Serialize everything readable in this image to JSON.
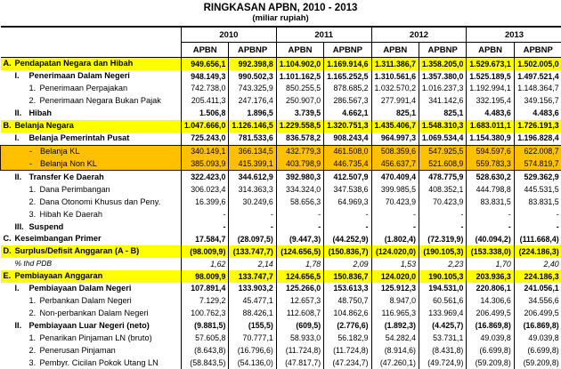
{
  "title": "RINGKASAN APBN, 2010 - 2013",
  "subtitle": "(miliar rupiah)",
  "columns": {
    "years": [
      "2010",
      "2011",
      "2012",
      "2013"
    ],
    "sub": [
      "APBN",
      "APBNP"
    ]
  },
  "colors": {
    "highlight_yellow": "#FFFF00",
    "highlight_orange": "#FFC000",
    "border": "#000000"
  },
  "rows": [
    {
      "prefix": "A.",
      "label": "Pendapatan Negara dan Hibah",
      "level": 0,
      "style": "yellow",
      "bold": true,
      "values": [
        "949.656,1",
        "992.398,8",
        "1.104.902,0",
        "1.169.914,6",
        "1.311.386,7",
        "1.358.205,0",
        "1.529.673,1",
        "1.502.005,0"
      ]
    },
    {
      "prefix": "I.",
      "label": "Penerimaan Dalam Negeri",
      "level": 1,
      "style": "",
      "bold": true,
      "values": [
        "948.149,3",
        "990.502,3",
        "1.101.162,5",
        "1.165.252,5",
        "1.310.561,6",
        "1.357.380,0",
        "1.525.189,5",
        "1.497.521,4"
      ]
    },
    {
      "prefix": "1.",
      "label": "Penerimaan Perpajakan",
      "level": 2,
      "style": "",
      "bold": false,
      "values": [
        "742.738,0",
        "743.325,9",
        "850.255,5",
        "878.685,2",
        "1.032.570,2",
        "1.016.237,3",
        "1.192.994,1",
        "1.148.364,7"
      ]
    },
    {
      "prefix": "2.",
      "label": "Penerimaan Negara Bukan Pajak",
      "level": 2,
      "style": "",
      "bold": false,
      "values": [
        "205.411,3",
        "247.176,4",
        "250.907,0",
        "286.567,3",
        "277.991,4",
        "341.142,6",
        "332.195,4",
        "349.156,7"
      ]
    },
    {
      "prefix": "II.",
      "label": "Hibah",
      "level": 1,
      "style": "",
      "bold": true,
      "values": [
        "1.506,8",
        "1.896,5",
        "3.739,5",
        "4.662,1",
        "825,1",
        "825,1",
        "4.483,6",
        "4.483,6"
      ]
    },
    {
      "prefix": "B.",
      "label": "Belanja Negara",
      "level": 0,
      "style": "yellow",
      "bold": true,
      "values": [
        "1.047.666,0",
        "1.126.146,5",
        "1.229.558,5",
        "1.320.751,3",
        "1.435.406,7",
        "1.548.310,3",
        "1.683.011,1",
        "1.726.191,3"
      ]
    },
    {
      "prefix": "I.",
      "label": "Belanja Pemerintah Pusat",
      "level": 1,
      "style": "",
      "bold": true,
      "values": [
        "725.243,0",
        "781.533,6",
        "836.578,2",
        "908.243,4",
        "964.997,3",
        "1.069.534,4",
        "1.154.380,9",
        "1.196.828,4"
      ]
    },
    {
      "prefix": "-",
      "label": "Belanja KL",
      "level": 2,
      "style": "orange",
      "bold": false,
      "box": "top",
      "values": [
        "340.149,1",
        "366.134,5",
        "432.779,3",
        "461.508,0",
        "508.359,6",
        "547.925,5",
        "594.597,6",
        "622.008,7"
      ]
    },
    {
      "prefix": "-",
      "label": "Belanja Non KL",
      "level": 2,
      "style": "orange",
      "bold": false,
      "box": "bottom",
      "values": [
        "385.093,9",
        "415.399,1",
        "403.798,9",
        "446.735,4",
        "456.637,7",
        "521.608,9",
        "559.783,3",
        "574.819,7"
      ]
    },
    {
      "prefix": "II.",
      "label": "Transfer Ke Daerah",
      "level": 1,
      "style": "",
      "bold": true,
      "values": [
        "322.423,0",
        "344.612,9",
        "392.980,3",
        "412.507,9",
        "470.409,4",
        "478.775,9",
        "528.630,2",
        "529.362,9"
      ]
    },
    {
      "prefix": "1.",
      "label": "Dana Perimbangan",
      "level": 2,
      "style": "",
      "bold": false,
      "values": [
        "306.023,4",
        "314.363,3",
        "334.324,0",
        "347.538,6",
        "399.985,5",
        "408.352,1",
        "444.798,8",
        "445.531,5"
      ]
    },
    {
      "prefix": "2.",
      "label": "Dana Otonomi Khusus dan Peny.",
      "level": 2,
      "style": "",
      "bold": false,
      "values": [
        "16.399,6",
        "30.249,6",
        "58.656,3",
        "64.969,3",
        "70.423,9",
        "70.423,9",
        "83.831,5",
        "83.831,5"
      ]
    },
    {
      "prefix": "3.",
      "label": "Hibah Ke Daerah",
      "level": 2,
      "style": "",
      "bold": false,
      "values": [
        "-",
        "-",
        "-",
        "-",
        "-",
        "-",
        "-",
        "-"
      ]
    },
    {
      "prefix": "III.",
      "label": "Suspend",
      "level": 1,
      "style": "",
      "bold": true,
      "values": [
        "-",
        "-",
        "-",
        "-",
        "-",
        "-",
        "-",
        "-"
      ]
    },
    {
      "prefix": "C.",
      "label": "Keseimbangan Primer",
      "level": 0,
      "style": "",
      "bold": true,
      "values": [
        "17.584,7",
        "(28.097,5)",
        "(9.447,3)",
        "(44.252,9)",
        "(1.802,4)",
        "(72.319,9)",
        "(40.094,2)",
        "(111.668,4)"
      ]
    },
    {
      "prefix": "D.",
      "label": "Surplus/Defisit Anggaran  (A - B)",
      "level": 0,
      "style": "yellow",
      "bold": true,
      "values": [
        "(98.009,9)",
        "(133.747,7)",
        "(124.656,5)",
        "(150.836,7)",
        "(124.020,0)",
        "(190.105,3)",
        "(153.338,0)",
        "(224.186,3)"
      ]
    },
    {
      "prefix": "",
      "label": "% thd PDB",
      "level": "p",
      "style": "italic",
      "bold": false,
      "values": [
        "1,62",
        "2,14",
        "1,78",
        "2,09",
        "1,53",
        "2,23",
        "1,70",
        "2,40"
      ]
    },
    {
      "prefix": "E.",
      "label": "Pembiayaan Anggaran",
      "level": 0,
      "style": "yellow",
      "bold": true,
      "values": [
        "98.009,9",
        "133.747,7",
        "124.656,5",
        "150.836,7",
        "124.020,0",
        "190.105,3",
        "203.936,3",
        "224.186,3"
      ]
    },
    {
      "prefix": "I.",
      "label": "Pembiayaan Dalam Negeri",
      "level": 1,
      "style": "",
      "bold": true,
      "values": [
        "107.891,4",
        "133.903,2",
        "125.266,0",
        "153.613,3",
        "125.912,3",
        "194.531,0",
        "220.806,1",
        "241.056,1"
      ]
    },
    {
      "prefix": "1.",
      "label": "Perbankan Dalam Negeri",
      "level": 2,
      "style": "",
      "bold": false,
      "values": [
        "7.129,2",
        "45.477,1",
        "12.657,3",
        "48.750,7",
        "8.947,0",
        "60.561,6",
        "14.306,6",
        "34.556,6"
      ]
    },
    {
      "prefix": "2.",
      "label": "Non-perbankan Dalam Negeri",
      "level": 2,
      "style": "",
      "bold": false,
      "values": [
        "100.762,3",
        "88.426,1",
        "112.608,7",
        "104.862,6",
        "116.965,3",
        "133.969,4",
        "206.499,5",
        "206.499,5"
      ]
    },
    {
      "prefix": "II.",
      "label": "Pembiayaan Luar Negeri (neto)",
      "level": 1,
      "style": "",
      "bold": true,
      "values": [
        "(9.881,5)",
        "(155,5)",
        "(609,5)",
        "(2.776,6)",
        "(1.892,3)",
        "(4.425,7)",
        "(16.869,8)",
        "(16.869,8)"
      ]
    },
    {
      "prefix": "1.",
      "label": "Penarikan Pinjaman LN (bruto)",
      "level": 2,
      "style": "",
      "bold": false,
      "values": [
        "57.605,8",
        "70.777,1",
        "58.933,0",
        "56.182,9",
        "54.282,4",
        "53.731,1",
        "49.039,8",
        "49.039,8"
      ]
    },
    {
      "prefix": "2.",
      "label": "Penerusan Pinjaman",
      "level": 2,
      "style": "",
      "bold": false,
      "values": [
        "(8.643,8)",
        "(16.796,6)",
        "(11.724,8)",
        "(11.724,8)",
        "(8.914,6)",
        "(8.431,8)",
        "(6.699,8)",
        "(6.699,8)"
      ]
    },
    {
      "prefix": "3.",
      "label": "Pembyr. Cicilan Pokok Utang LN",
      "level": 2,
      "style": "",
      "bold": false,
      "values": [
        "(58.843,5)",
        "(54.136,0)",
        "(47.817,7)",
        "(47.234,7)",
        "(47.260,1)",
        "(49.724,9)",
        "(59.209,8)",
        "(59.209,8)"
      ]
    }
  ]
}
